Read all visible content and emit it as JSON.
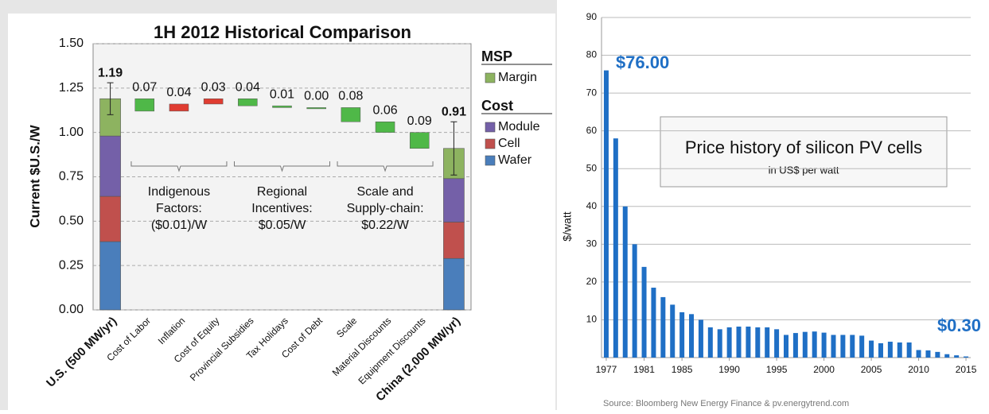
{
  "chart_data": [
    {
      "type": "waterfall",
      "title": "1H 2012 Historical Comparison",
      "ylabel": "Current $U.S./W",
      "categories": [
        "U.S. (500 MW/yr)",
        "Cost of Labor",
        "Inflation",
        "Cost of Equity",
        "Provincial Subsidies",
        "Tax Holidays",
        "Cost of Debt",
        "Scale",
        "Material Discounts",
        "Equipment Discounts",
        "China (2,000 MW/yr)"
      ],
      "ylim": [
        0,
        1.5
      ],
      "yticks": [
        {
          "value": 0,
          "label": "0.00"
        },
        {
          "value": 0.25,
          "label": "0.25"
        },
        {
          "value": 0.5,
          "label": "0.50"
        },
        {
          "value": 0.75,
          "label": "0.75"
        },
        {
          "value": 1,
          "label": "1.00"
        },
        {
          "value": 1.25,
          "label": "1.25"
        },
        {
          "value": 1.5,
          "label": "1.50"
        }
      ],
      "grid": true,
      "series_groups": [
        {
          "title": "MSP",
          "series": [
            {
              "name": "Margin",
              "color": "#8db360",
              "values": [
                0.21,
                null,
                null,
                null,
                null,
                null,
                null,
                null,
                null,
                null,
                0.17
              ]
            }
          ]
        },
        {
          "title": "Cost",
          "series": [
            {
              "name": "Module",
              "color": "#7460a8",
              "values": [
                0.34,
                null,
                null,
                null,
                null,
                null,
                null,
                null,
                null,
                null,
                0.245
              ]
            },
            {
              "name": "Cell",
              "color": "#c0504d",
              "values": [
                0.255,
                null,
                null,
                null,
                null,
                null,
                null,
                null,
                null,
                null,
                0.205
              ]
            },
            {
              "name": "Wafer",
              "color": "#4a7ebb",
              "values": [
                0.385,
                null,
                null,
                null,
                null,
                null,
                null,
                null,
                null,
                null,
                0.29
              ]
            }
          ]
        }
      ],
      "totals": [
        1.19,
        null,
        null,
        null,
        null,
        null,
        null,
        null,
        null,
        null,
        0.91
      ],
      "errors": [
        0.09,
        null,
        null,
        null,
        null,
        null,
        null,
        null,
        null,
        null,
        0.15
      ],
      "steps": [
        null,
        -0.07,
        0.04,
        0.03,
        -0.04,
        -0.01,
        0,
        -0.08,
        -0.06,
        -0.09,
        null
      ],
      "value_labels": [
        null,
        "0.07",
        "0.04",
        "0.03",
        "0.04",
        "0.01",
        "0.00",
        "0.08",
        "0.06",
        "0.09",
        null
      ],
      "increase_color": "#e03c31",
      "decrease_color": "#4fb848",
      "annotations": [
        [
          "Indigenous",
          "Factors:",
          "($0.01)/W"
        ],
        [
          "Regional",
          "Incentives:",
          "$0.05/W"
        ],
        [
          "Scale and",
          "Supply-chain:",
          "$0.22/W"
        ]
      ]
    },
    {
      "type": "bar",
      "title": "Price history of silicon PV cells",
      "subtitle": "in US$ per watt",
      "ylabel": "$/watt",
      "source": "Source: Bloomberg New Energy Finance & pv.energytrend.com",
      "color": "#1f6fc5",
      "x": [
        1977,
        1978,
        1979,
        1980,
        1981,
        1982,
        1983,
        1984,
        1985,
        1986,
        1987,
        1988,
        1989,
        1990,
        1991,
        1992,
        1993,
        1994,
        1995,
        1996,
        1997,
        1998,
        1999,
        2000,
        2001,
        2002,
        2003,
        2004,
        2005,
        2006,
        2007,
        2008,
        2009,
        2010,
        2011,
        2012,
        2013,
        2014,
        2015
      ],
      "values": [
        76,
        58,
        40,
        30,
        24,
        18.5,
        16,
        14,
        12,
        11.5,
        10,
        8,
        7.5,
        8,
        8.2,
        8.2,
        8,
        8,
        7.5,
        6,
        6.5,
        6.8,
        6.9,
        6.6,
        6,
        6,
        6,
        5.8,
        4.5,
        3.8,
        4.2,
        4,
        4,
        2,
        1.9,
        1.5,
        0.9,
        0.6,
        0.3
      ],
      "value_labels": [
        "$76.00",
        null,
        null,
        null,
        null,
        null,
        null,
        null,
        null,
        null,
        null,
        null,
        null,
        null,
        null,
        null,
        null,
        null,
        null,
        null,
        null,
        null,
        null,
        null,
        null,
        null,
        null,
        null,
        null,
        null,
        null,
        null,
        null,
        null,
        null,
        null,
        null,
        null,
        "$0.30"
      ],
      "xlim": [
        1976.5,
        2015.5
      ],
      "xticks": [
        1977,
        1981,
        1985,
        1990,
        1995,
        2000,
        2005,
        2010,
        2015
      ],
      "ylim": [
        0,
        90
      ],
      "yticks": [
        10,
        20,
        30,
        40,
        50,
        60,
        70,
        80,
        90
      ],
      "grid": true
    }
  ]
}
